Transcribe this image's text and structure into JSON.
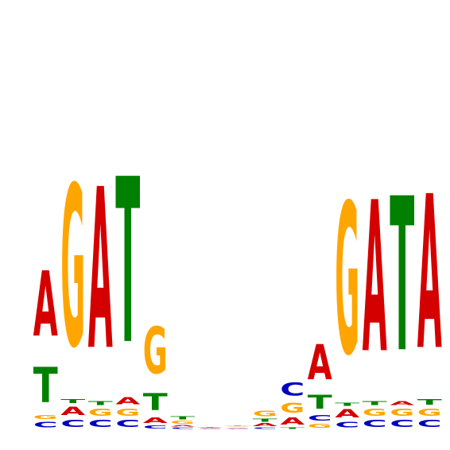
{
  "logo": {
    "type": "sequence-logo",
    "alphabet": [
      "A",
      "C",
      "G",
      "T"
    ],
    "colors": {
      "A": "#d40000",
      "C": "#0000c0",
      "G": "#ffa500",
      "T": "#008000"
    },
    "positions": [
      {
        "stack": [
          {
            "base": "C",
            "height": 0.04
          },
          {
            "base": "G",
            "height": 0.03
          },
          {
            "base": "T",
            "height": 0.25
          },
          {
            "base": "A",
            "height": 0.46
          }
        ]
      },
      {
        "stack": [
          {
            "base": "C",
            "height": 0.05
          },
          {
            "base": "A",
            "height": 0.06
          },
          {
            "base": "T",
            "height": 0.03
          },
          {
            "base": "G",
            "height": 1.14
          }
        ]
      },
      {
        "stack": [
          {
            "base": "C",
            "height": 0.05
          },
          {
            "base": "G",
            "height": 0.05
          },
          {
            "base": "T",
            "height": 0.03
          },
          {
            "base": "A",
            "height": 1.14
          }
        ]
      },
      {
        "stack": [
          {
            "base": "C",
            "height": 0.05
          },
          {
            "base": "G",
            "height": 0.05
          },
          {
            "base": "A",
            "height": 0.05
          },
          {
            "base": "T",
            "height": 1.17
          }
        ]
      },
      {
        "stack": [
          {
            "base": "C",
            "height": 0.02
          },
          {
            "base": "A",
            "height": 0.04
          },
          {
            "base": "T",
            "height": 0.12
          },
          {
            "base": "G",
            "height": 0.33
          }
        ]
      },
      {
        "stack": [
          {
            "base": "C",
            "height": 0.01
          },
          {
            "base": "A",
            "height": 0.01
          },
          {
            "base": "G",
            "height": 0.02
          },
          {
            "base": "T",
            "height": 0.02
          }
        ]
      },
      {
        "stack": [
          {
            "base": "C",
            "height": 0.003
          },
          {
            "base": "A",
            "height": 0.003
          },
          {
            "base": "G",
            "height": 0.003
          },
          {
            "base": "T",
            "height": 0.003
          }
        ]
      },
      {
        "stack": [
          {
            "base": "C",
            "height": 0.005
          },
          {
            "base": "A",
            "height": 0.005
          },
          {
            "base": "G",
            "height": 0.005
          },
          {
            "base": "T",
            "height": 0.005
          }
        ]
      },
      {
        "stack": [
          {
            "base": "C",
            "height": 0.01
          },
          {
            "base": "A",
            "height": 0.02
          },
          {
            "base": "T",
            "height": 0.02
          },
          {
            "base": "G",
            "height": 0.04
          }
        ]
      },
      {
        "stack": [
          {
            "base": "T",
            "height": 0.01
          },
          {
            "base": "A",
            "height": 0.05
          },
          {
            "base": "G",
            "height": 0.07
          },
          {
            "base": "C",
            "height": 0.09
          }
        ]
      },
      {
        "stack": [
          {
            "base": "G",
            "height": 0.03
          },
          {
            "base": "C",
            "height": 0.04
          },
          {
            "base": "T",
            "height": 0.1
          },
          {
            "base": "A",
            "height": 0.25
          }
        ]
      },
      {
        "stack": [
          {
            "base": "C",
            "height": 0.04
          },
          {
            "base": "A",
            "height": 0.06
          },
          {
            "base": "T",
            "height": 0.02
          },
          {
            "base": "G",
            "height": 1.07
          }
        ]
      },
      {
        "stack": [
          {
            "base": "C",
            "height": 0.05
          },
          {
            "base": "G",
            "height": 0.05
          },
          {
            "base": "T",
            "height": 0.03
          },
          {
            "base": "A",
            "height": 1.07
          }
        ]
      },
      {
        "stack": [
          {
            "base": "C",
            "height": 0.05
          },
          {
            "base": "G",
            "height": 0.05
          },
          {
            "base": "A",
            "height": 0.03
          },
          {
            "base": "T",
            "height": 1.09
          }
        ]
      },
      {
        "stack": [
          {
            "base": "C",
            "height": 0.05
          },
          {
            "base": "G",
            "height": 0.05
          },
          {
            "base": "T",
            "height": 0.04
          },
          {
            "base": "A",
            "height": 1.09
          }
        ]
      }
    ]
  }
}
